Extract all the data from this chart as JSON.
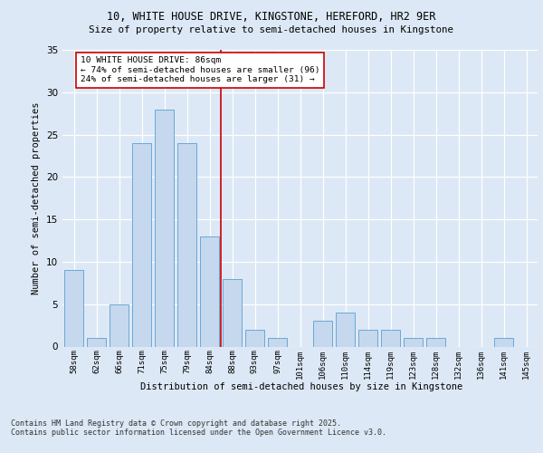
{
  "title1": "10, WHITE HOUSE DRIVE, KINGSTONE, HEREFORD, HR2 9ER",
  "title2": "Size of property relative to semi-detached houses in Kingstone",
  "xlabel": "Distribution of semi-detached houses by size in Kingstone",
  "ylabel": "Number of semi-detached properties",
  "categories": [
    "58sqm",
    "62sqm",
    "66sqm",
    "71sqm",
    "75sqm",
    "79sqm",
    "84sqm",
    "88sqm",
    "93sqm",
    "97sqm",
    "101sqm",
    "106sqm",
    "110sqm",
    "114sqm",
    "119sqm",
    "123sqm",
    "128sqm",
    "132sqm",
    "136sqm",
    "141sqm",
    "145sqm"
  ],
  "values": [
    9,
    1,
    5,
    24,
    28,
    24,
    13,
    8,
    2,
    1,
    0,
    3,
    4,
    2,
    2,
    1,
    1,
    0,
    0,
    1,
    0
  ],
  "bar_color": "#c5d8ed",
  "bar_edge_color": "#5a9fd4",
  "vline_x": 6.5,
  "vline_color": "#cc0000",
  "annotation_text": "10 WHITE HOUSE DRIVE: 86sqm\n← 74% of semi-detached houses are smaller (96)\n24% of semi-detached houses are larger (31) →",
  "annotation_box_color": "#ffffff",
  "annotation_box_edge": "#cc0000",
  "ylim": [
    0,
    35
  ],
  "yticks": [
    0,
    5,
    10,
    15,
    20,
    25,
    30,
    35
  ],
  "footer": "Contains HM Land Registry data © Crown copyright and database right 2025.\nContains public sector information licensed under the Open Government Licence v3.0.",
  "bg_color": "#dce8f5",
  "plot_bg_color": "#dce8f5"
}
